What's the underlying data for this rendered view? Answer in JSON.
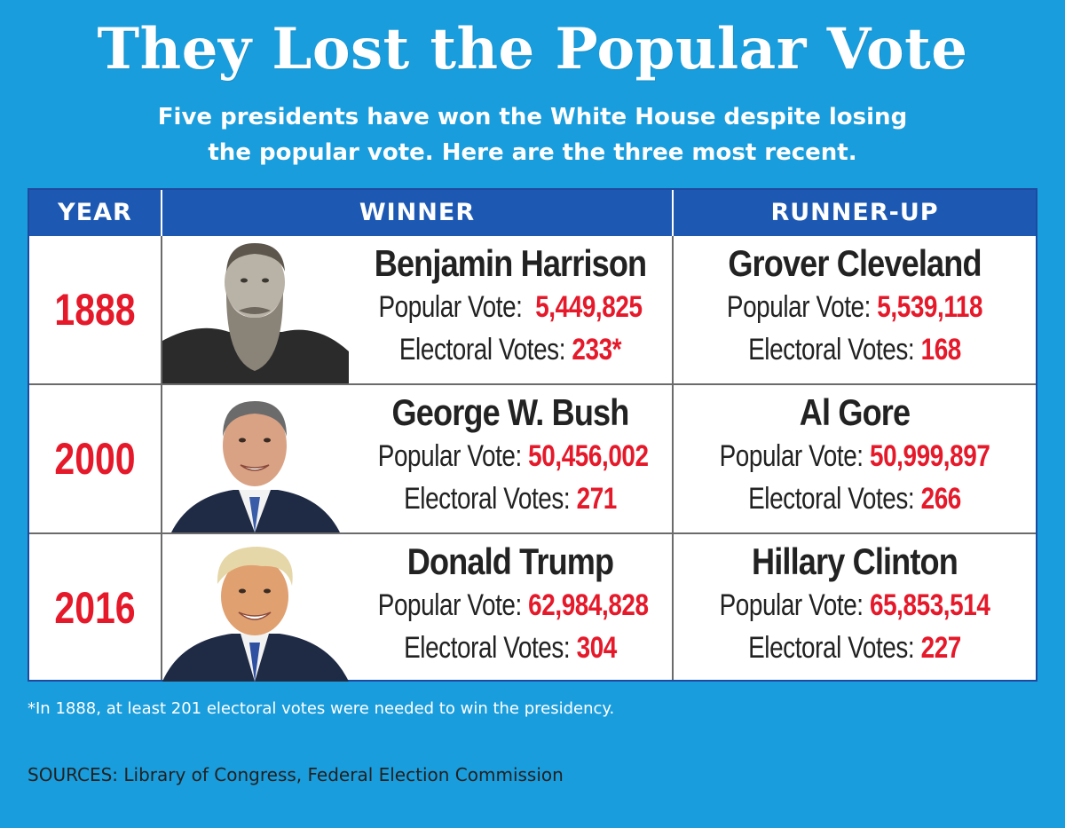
{
  "title": "They Lost the Popular Vote",
  "subtitle_line1": "Five presidents have won the White House despite losing",
  "subtitle_line2": "the popular vote. Here are the three most recent.",
  "colors": {
    "background": "#1a9ddc",
    "header": "#1d59b3",
    "accent_red": "#e5192a",
    "text_dark": "#222222"
  },
  "chart_data": {
    "type": "table",
    "columns": [
      "YEAR",
      "WINNER",
      "RUNNER-UP"
    ],
    "rows": [
      {
        "year": "1888",
        "winner": {
          "name": "Benjamin Harrison",
          "popular_label": "Popular Vote:",
          "popular_vote": "5,449,825",
          "electoral_label": "Electoral Votes:",
          "electoral_votes": "233*",
          "portrait_icon": "portrait-harrison"
        },
        "runner_up": {
          "name": "Grover Cleveland",
          "popular_label": "Popular Vote:",
          "popular_vote": "5,539,118",
          "electoral_label": "Electoral Votes:",
          "electoral_votes": "168"
        }
      },
      {
        "year": "2000",
        "winner": {
          "name": "George W. Bush",
          "popular_label": "Popular Vote:",
          "popular_vote": "50,456,002",
          "electoral_label": "Electoral Votes:",
          "electoral_votes": "271",
          "portrait_icon": "portrait-bush"
        },
        "runner_up": {
          "name": "Al Gore",
          "popular_label": "Popular Vote:",
          "popular_vote": "50,999,897",
          "electoral_label": "Electoral Votes:",
          "electoral_votes": "266"
        }
      },
      {
        "year": "2016",
        "winner": {
          "name": "Donald Trump",
          "popular_label": "Popular Vote:",
          "popular_vote": "62,984,828",
          "electoral_label": "Electoral Votes:",
          "electoral_votes": "304",
          "portrait_icon": "portrait-trump"
        },
        "runner_up": {
          "name": "Hillary Clinton",
          "popular_label": "Popular Vote:",
          "popular_vote": "65,853,514",
          "electoral_label": "Electoral Votes:",
          "electoral_votes": "227"
        }
      }
    ]
  },
  "footnote": "*In 1888, at least 201 electoral votes were needed to win the presidency.",
  "sources": "SOURCES: Library of Congress, Federal Election Commission"
}
